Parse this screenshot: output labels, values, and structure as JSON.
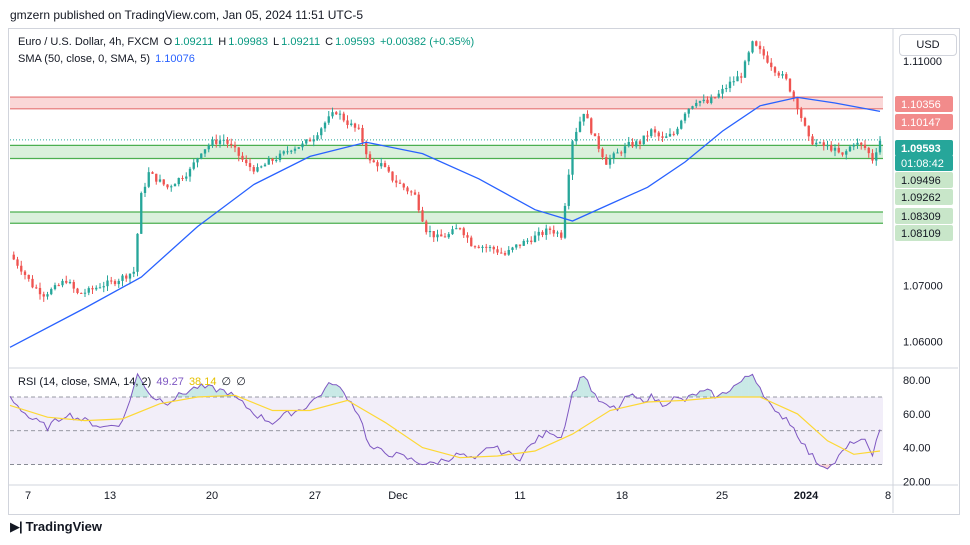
{
  "header": {
    "published": "gmzern published on TradingView.com, Jan 05, 2024 11:51 UTC-5"
  },
  "legend": {
    "symbol": "Euro / U.S. Dollar, 4h, FXCM",
    "o_label": "O",
    "o": "1.09211",
    "h_label": "H",
    "h": "1.09983",
    "l_label": "L",
    "l": "1.09211",
    "c_label": "C",
    "c": "1.09593",
    "change": "+0.00382 (+0.35%)",
    "sma_title": "SMA (50, close, 0, SMA, 5)",
    "sma_value": "1.10076",
    "rsi_title": "RSI (14, close, SMA, 14, 2)",
    "rsi_value": "49.27",
    "rsi_sma_value": "38.14",
    "extra1": "∅",
    "extra2": "∅"
  },
  "currency_button": "USD",
  "price_labels": [
    {
      "text": "1.10356",
      "kind": "red"
    },
    {
      "text": "1.10147",
      "kind": "red"
    },
    {
      "text": "1.09593",
      "kind": "current"
    },
    {
      "text": "01:08:42",
      "kind": "countdown"
    },
    {
      "text": "1.09496",
      "kind": "green"
    },
    {
      "text": "1.09262",
      "kind": "green"
    },
    {
      "text": "1.08309",
      "kind": "green"
    },
    {
      "text": "1.08109",
      "kind": "green"
    }
  ],
  "footer": {
    "brand": "TradingView",
    "logo": "tradingview-logo-icon"
  },
  "colors": {
    "up": "#26a69a",
    "down": "#ef5350",
    "sma": "#2962ff",
    "rsi": "#7e57c2",
    "rsi_sma": "#fdd835",
    "resistance_zone": "#f8c9c9",
    "support_zone": "#cdebd0",
    "support_line": "#4caf50"
  },
  "chart_data": [
    {
      "type": "candlestick",
      "title": "",
      "y_axis_ticks": [
        "1.11000",
        "1.07000",
        "1.06000"
      ],
      "ylim": [
        1.0555,
        1.1155
      ],
      "x_tick_labels": [
        "7",
        "13",
        "20",
        "27",
        "Dec",
        "11",
        "18",
        "25",
        "2024",
        "8"
      ],
      "zones": [
        {
          "name": "resistance",
          "from": 1.10147,
          "to": 1.10356
        },
        {
          "name": "support-upper",
          "from": 1.09262,
          "to": 1.09496
        },
        {
          "name": "support-lower",
          "from": 1.08109,
          "to": 1.08309
        }
      ],
      "current_price": 1.09593,
      "close_path": [
        [
          0,
          1.0755
        ],
        [
          3,
          1.073
        ],
        [
          6,
          1.07
        ],
        [
          9,
          1.0685
        ],
        [
          12,
          1.0695
        ],
        [
          15,
          1.071
        ],
        [
          18,
          1.0685
        ],
        [
          21,
          1.069
        ],
        [
          24,
          1.07
        ],
        [
          27,
          1.0705
        ],
        [
          30,
          1.0715
        ],
        [
          33,
          1.0725
        ],
        [
          35,
          1.086
        ],
        [
          37,
          1.09
        ],
        [
          39,
          1.089
        ],
        [
          42,
          1.0875
        ],
        [
          45,
          1.089
        ],
        [
          48,
          1.0905
        ],
        [
          51,
          1.094
        ],
        [
          54,
          1.0955
        ],
        [
          57,
          1.096
        ],
        [
          60,
          1.094
        ],
        [
          63,
          1.0915
        ],
        [
          66,
          1.0905
        ],
        [
          69,
          1.092
        ],
        [
          72,
          1.093
        ],
        [
          75,
          1.0945
        ],
        [
          78,
          1.095
        ],
        [
          81,
          1.0965
        ],
        [
          84,
          1.099
        ],
        [
          87,
          1.101
        ],
        [
          90,
          1.099
        ],
        [
          93,
          1.0975
        ],
        [
          96,
          1.092
        ],
        [
          99,
          1.0915
        ],
        [
          102,
          1.089
        ],
        [
          105,
          1.0875
        ],
        [
          108,
          1.086
        ],
        [
          111,
          1.08
        ],
        [
          114,
          1.0785
        ],
        [
          117,
          1.079
        ],
        [
          120,
          1.0805
        ],
        [
          123,
          1.0775
        ],
        [
          126,
          1.077
        ],
        [
          129,
          1.0765
        ],
        [
          132,
          1.0755
        ],
        [
          135,
          1.077
        ],
        [
          138,
          1.078
        ],
        [
          141,
          1.079
        ],
        [
          144,
          1.08
        ],
        [
          147,
          1.079
        ],
        [
          150,
          1.096
        ],
        [
          153,
          1.101
        ],
        [
          156,
          1.096
        ],
        [
          159,
          1.092
        ],
        [
          162,
          1.0935
        ],
        [
          165,
          1.095
        ],
        [
          168,
          1.0955
        ],
        [
          171,
          1.0975
        ],
        [
          174,
          1.096
        ],
        [
          177,
          1.097
        ],
        [
          180,
          1.101
        ],
        [
          183,
          1.103
        ],
        [
          186,
          1.1025
        ],
        [
          189,
          1.104
        ],
        [
          192,
          1.106
        ],
        [
          195,
          1.1075
        ],
        [
          198,
          1.113
        ],
        [
          201,
          1.111
        ],
        [
          204,
          1.1085
        ],
        [
          207,
          1.1065
        ],
        [
          210,
          1.102
        ],
        [
          213,
          1.096
        ],
        [
          216,
          1.095
        ],
        [
          219,
          1.0945
        ],
        [
          222,
          1.093
        ],
        [
          225,
          1.0955
        ],
        [
          228,
          1.0945
        ],
        [
          230,
          1.0925
        ],
        [
          232,
          1.0959
        ]
      ],
      "sma_path": [
        [
          0,
          1.059
        ],
        [
          20,
          1.066
        ],
        [
          35,
          1.0715
        ],
        [
          50,
          1.0805
        ],
        [
          65,
          1.088
        ],
        [
          80,
          1.093
        ],
        [
          95,
          1.0955
        ],
        [
          110,
          1.0935
        ],
        [
          125,
          1.089
        ],
        [
          140,
          1.0835
        ],
        [
          150,
          1.0815
        ],
        [
          160,
          1.0845
        ],
        [
          170,
          1.0875
        ],
        [
          180,
          1.092
        ],
        [
          190,
          1.0975
        ],
        [
          200,
          1.102
        ],
        [
          210,
          1.1035
        ],
        [
          220,
          1.1025
        ],
        [
          232,
          1.101
        ]
      ]
    },
    {
      "type": "line",
      "title": "",
      "y_axis_ticks": [
        "80.00",
        "60.00",
        "40.00",
        "20.00"
      ],
      "ylim": [
        19,
        86
      ],
      "bands": [
        30,
        50,
        70
      ],
      "series": [
        {
          "name": "",
          "points": [
            [
              0,
              70
            ],
            [
              5,
              58
            ],
            [
              10,
              52
            ],
            [
              15,
              60
            ],
            [
              20,
              56
            ],
            [
              25,
              52
            ],
            [
              30,
              55
            ],
            [
              34,
              83
            ],
            [
              38,
              70
            ],
            [
              42,
              67
            ],
            [
              46,
              72
            ],
            [
              50,
              76
            ],
            [
              54,
              75
            ],
            [
              58,
              73
            ],
            [
              62,
              66
            ],
            [
              66,
              59
            ],
            [
              70,
              55
            ],
            [
              74,
              60
            ],
            [
              78,
              63
            ],
            [
              82,
              70
            ],
            [
              86,
              79
            ],
            [
              90,
              70
            ],
            [
              93,
              60
            ],
            [
              96,
              40
            ],
            [
              100,
              37
            ],
            [
              104,
              35
            ],
            [
              108,
              32
            ],
            [
              112,
              30
            ],
            [
              116,
              33
            ],
            [
              120,
              36
            ],
            [
              124,
              32
            ],
            [
              128,
              41
            ],
            [
              132,
              37
            ],
            [
              136,
              34
            ],
            [
              140,
              44
            ],
            [
              144,
              50
            ],
            [
              147,
              46
            ],
            [
              150,
              72
            ],
            [
              153,
              84
            ],
            [
              156,
              70
            ],
            [
              159,
              64
            ],
            [
              162,
              63
            ],
            [
              165,
              71
            ],
            [
              168,
              68
            ],
            [
              171,
              70
            ],
            [
              174,
              66
            ],
            [
              177,
              69
            ],
            [
              180,
              68
            ],
            [
              183,
              72
            ],
            [
              186,
              73
            ],
            [
              189,
              70
            ],
            [
              192,
              75
            ],
            [
              195,
              79
            ],
            [
              198,
              84
            ],
            [
              201,
              72
            ],
            [
              204,
              60
            ],
            [
              207,
              58
            ],
            [
              210,
              48
            ],
            [
              213,
              37
            ],
            [
              216,
              30
            ],
            [
              219,
              29
            ],
            [
              222,
              37
            ],
            [
              225,
              44
            ],
            [
              228,
              43
            ],
            [
              230,
              37
            ],
            [
              232,
              49
            ]
          ]
        },
        {
          "name": "",
          "points": [
            [
              0,
              65
            ],
            [
              10,
              58
            ],
            [
              20,
              56
            ],
            [
              30,
              57
            ],
            [
              40,
              66
            ],
            [
              50,
              70
            ],
            [
              60,
              71
            ],
            [
              70,
              62
            ],
            [
              80,
              62
            ],
            [
              90,
              68
            ],
            [
              100,
              55
            ],
            [
              110,
              40
            ],
            [
              120,
              34
            ],
            [
              130,
              35
            ],
            [
              140,
              38
            ],
            [
              150,
              48
            ],
            [
              160,
              62
            ],
            [
              170,
              67
            ],
            [
              180,
              68
            ],
            [
              190,
              70
            ],
            [
              200,
              70
            ],
            [
              210,
              60
            ],
            [
              218,
              44
            ],
            [
              225,
              36
            ],
            [
              232,
              38
            ]
          ]
        }
      ]
    }
  ]
}
